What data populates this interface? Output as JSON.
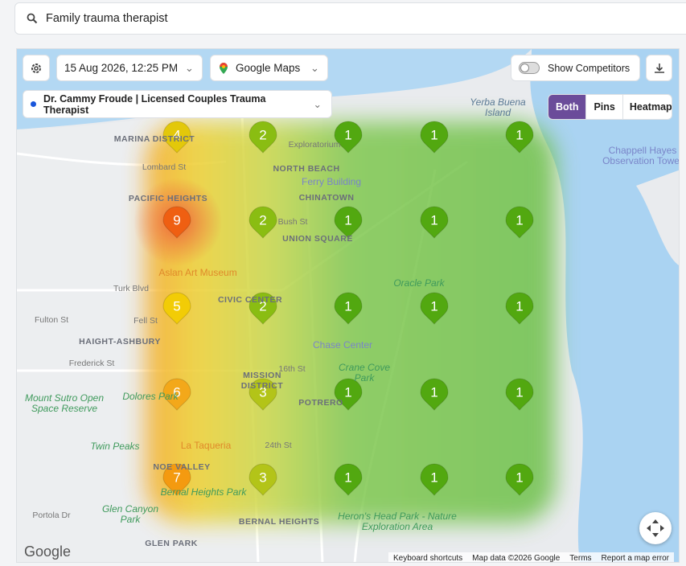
{
  "search": {
    "query": "Family trauma therapist"
  },
  "toolbar": {
    "date": "15 Aug 2026, 12:25 PM",
    "provider": "Google Maps",
    "competitors": "Show Competitors",
    "business": "Dr. Cammy Froude | Licensed Couples Trauma Therapist",
    "views": [
      "Both",
      "Pins",
      "Heatmap"
    ],
    "active_view": "Both"
  },
  "grid": {
    "rows": [
      [
        4,
        2,
        1,
        1,
        1
      ],
      [
        9,
        2,
        1,
        1,
        1
      ],
      [
        5,
        2,
        1,
        1,
        1
      ],
      [
        6,
        3,
        1,
        1,
        1
      ],
      [
        7,
        3,
        1,
        1,
        1
      ]
    ]
  },
  "map_labels": [
    "Yerba Buena Island",
    "Chappell Hayes Observation Tower",
    "MARINA DISTRICT",
    "Exploratorium",
    "NORTH BEACH",
    "Ferry Building",
    "CHINATOWN",
    "PACIFIC HEIGHTS",
    "Lombard St",
    "UNION SQUARE",
    "Bush St",
    "Aslan Art Museum",
    "Oracle Park",
    "CIVIC CENTER",
    "Turk Blvd",
    "Fulton St",
    "Fell St",
    "HAIGHT-ASHBURY",
    "Chase Center",
    "Crane Cove Park",
    "Frederick St",
    "16th St",
    "MISSION DISTRICT",
    "Dolores Park",
    "POTRERO",
    "Mount Sutro Open Space Reserve",
    "Twin Peaks",
    "La Taqueria",
    "24th St",
    "NOE VALLEY",
    "Bernal Heights Park",
    "Glen Canyon Park",
    "BERNAL HEIGHTS",
    "Heron's Head Park - Nature Exploration Area",
    "GLEN PARK",
    "Portola Dr"
  ],
  "map_footer": {
    "logo": "Google",
    "links": [
      "Keyboard shortcuts",
      "Map data ©2026 Google",
      "Terms",
      "Report a map error"
    ]
  }
}
